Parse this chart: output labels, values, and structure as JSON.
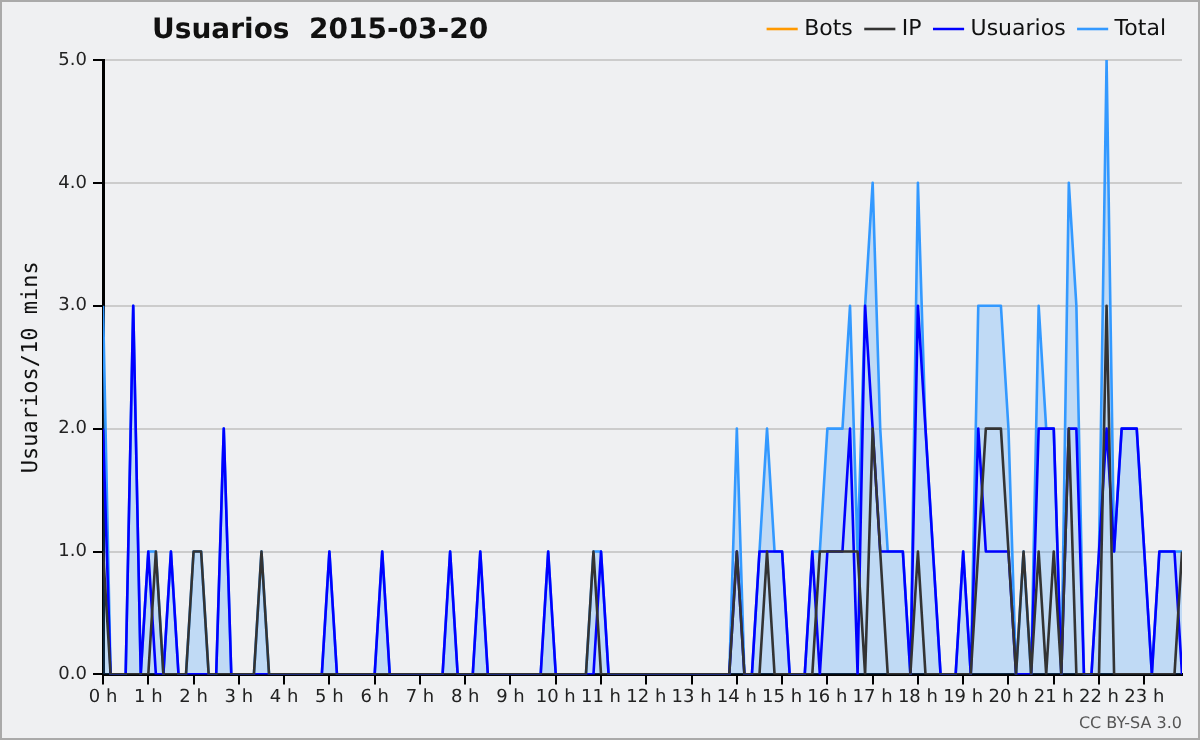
{
  "chart_data": {
    "type": "line",
    "title": "Usuarios  2015-03-20",
    "ylabel": "Usuarios/10 mins",
    "annotations": [
      "CC BY-SA 3.0"
    ],
    "x": [
      0,
      0.167,
      0.333,
      0.5,
      0.667,
      0.833,
      1,
      1.167,
      1.333,
      1.5,
      1.667,
      1.833,
      2,
      2.167,
      2.333,
      2.5,
      2.667,
      2.833,
      3,
      3.167,
      3.333,
      3.5,
      3.667,
      3.833,
      4,
      4.167,
      4.333,
      4.5,
      4.667,
      4.833,
      5,
      5.167,
      5.333,
      5.5,
      5.667,
      5.833,
      6,
      6.167,
      6.333,
      6.5,
      6.667,
      6.833,
      7,
      7.167,
      7.333,
      7.5,
      7.667,
      7.833,
      8,
      8.167,
      8.333,
      8.5,
      8.667,
      8.833,
      9,
      9.167,
      9.333,
      9.5,
      9.667,
      9.833,
      10,
      10.167,
      10.333,
      10.5,
      10.667,
      10.833,
      11,
      11.167,
      11.333,
      11.5,
      11.667,
      11.833,
      12,
      12.167,
      12.333,
      12.5,
      12.667,
      12.833,
      13,
      13.167,
      13.333,
      13.5,
      13.667,
      13.833,
      14,
      14.167,
      14.333,
      14.5,
      14.667,
      14.833,
      15,
      15.167,
      15.333,
      15.5,
      15.667,
      15.833,
      16,
      16.167,
      16.333,
      16.5,
      16.667,
      16.833,
      17,
      17.167,
      17.333,
      17.5,
      17.667,
      17.833,
      18,
      18.167,
      18.333,
      18.5,
      18.667,
      18.833,
      19,
      19.167,
      19.333,
      19.5,
      19.667,
      19.833,
      20,
      20.167,
      20.333,
      20.5,
      20.667,
      20.833,
      21,
      21.167,
      21.333,
      21.5,
      21.667,
      21.833,
      22,
      22.167,
      22.333,
      22.5,
      22.667,
      22.833,
      23,
      23.167,
      23.333,
      23.5,
      23.667,
      23.833
    ],
    "series": [
      {
        "name": "Total",
        "type": "area",
        "color": "#3399ff",
        "values": [
          3,
          0,
          0,
          0,
          3,
          0,
          1,
          1,
          0,
          1,
          0,
          0,
          1,
          1,
          0,
          0,
          2,
          0,
          0,
          0,
          0,
          1,
          0,
          0,
          0,
          0,
          0,
          0,
          0,
          0,
          1,
          0,
          0,
          0,
          0,
          0,
          0,
          1,
          0,
          0,
          0,
          0,
          0,
          0,
          0,
          0,
          1,
          0,
          0,
          0,
          1,
          0,
          0,
          0,
          0,
          0,
          0,
          0,
          0,
          1,
          0,
          0,
          0,
          0,
          0,
          1,
          1,
          0,
          0,
          0,
          0,
          0,
          0,
          0,
          0,
          0,
          0,
          0,
          0,
          0,
          0,
          0,
          0,
          0,
          2,
          0,
          0,
          1,
          2,
          1,
          1,
          0,
          0,
          0,
          1,
          1,
          2,
          2,
          2,
          3,
          1,
          3,
          4,
          2,
          1,
          1,
          1,
          0,
          4,
          2,
          1,
          0,
          0,
          0,
          1,
          0,
          3,
          3,
          3,
          3,
          2,
          0,
          1,
          0,
          3,
          2,
          2,
          0,
          4,
          3,
          0,
          0,
          1,
          5,
          1,
          2,
          2,
          2,
          1,
          0,
          1,
          1,
          1,
          1
        ]
      },
      {
        "name": "Usuarios",
        "color": "#0000ff",
        "values": [
          2,
          0,
          0,
          0,
          3,
          0,
          1,
          0,
          0,
          1,
          0,
          0,
          0,
          0,
          0,
          0,
          2,
          0,
          0,
          0,
          0,
          0,
          0,
          0,
          0,
          0,
          0,
          0,
          0,
          0,
          1,
          0,
          0,
          0,
          0,
          0,
          0,
          1,
          0,
          0,
          0,
          0,
          0,
          0,
          0,
          0,
          1,
          0,
          0,
          0,
          1,
          0,
          0,
          0,
          0,
          0,
          0,
          0,
          0,
          1,
          0,
          0,
          0,
          0,
          0,
          0,
          1,
          0,
          0,
          0,
          0,
          0,
          0,
          0,
          0,
          0,
          0,
          0,
          0,
          0,
          0,
          0,
          0,
          0,
          1,
          0,
          0,
          1,
          1,
          1,
          1,
          0,
          0,
          0,
          1,
          0,
          1,
          1,
          1,
          2,
          0,
          3,
          2,
          1,
          1,
          1,
          1,
          0,
          3,
          2,
          1,
          0,
          0,
          0,
          1,
          0,
          2,
          1,
          1,
          1,
          1,
          0,
          0,
          0,
          2,
          2,
          2,
          0,
          2,
          2,
          0,
          0,
          1,
          2,
          1,
          2,
          2,
          2,
          1,
          0,
          1,
          1,
          1,
          0
        ]
      },
      {
        "name": "IP",
        "color": "#333333",
        "values": [
          1,
          0,
          0,
          0,
          0,
          0,
          0,
          1,
          0,
          0,
          0,
          0,
          1,
          1,
          0,
          0,
          0,
          0,
          0,
          0,
          0,
          1,
          0,
          0,
          0,
          0,
          0,
          0,
          0,
          0,
          0,
          0,
          0,
          0,
          0,
          0,
          0,
          0,
          0,
          0,
          0,
          0,
          0,
          0,
          0,
          0,
          0,
          0,
          0,
          0,
          0,
          0,
          0,
          0,
          0,
          0,
          0,
          0,
          0,
          0,
          0,
          0,
          0,
          0,
          0,
          1,
          0,
          0,
          0,
          0,
          0,
          0,
          0,
          0,
          0,
          0,
          0,
          0,
          0,
          0,
          0,
          0,
          0,
          0,
          1,
          0,
          0,
          0,
          1,
          0,
          0,
          0,
          0,
          0,
          0,
          1,
          1,
          1,
          1,
          1,
          1,
          0,
          2,
          1,
          0,
          0,
          0,
          0,
          1,
          0,
          0,
          0,
          0,
          0,
          0,
          0,
          1,
          2,
          2,
          2,
          1,
          0,
          1,
          0,
          1,
          0,
          1,
          0,
          2,
          0,
          0,
          0,
          0,
          3,
          0,
          0,
          0,
          0,
          0,
          0,
          0,
          0,
          0,
          1
        ]
      },
      {
        "name": "Bots",
        "color": "#ff9900",
        "values": [
          null,
          null,
          null,
          null,
          null,
          null,
          null,
          null,
          null,
          null,
          null,
          null,
          null,
          null,
          null,
          null,
          null,
          null,
          null,
          null,
          null,
          null,
          null,
          null,
          null,
          null,
          null,
          null,
          null,
          null,
          null,
          null,
          null,
          null,
          null,
          null,
          null,
          null,
          null,
          null,
          null,
          null,
          null,
          null,
          null,
          null,
          null,
          null,
          null,
          null,
          null,
          null,
          null,
          null,
          null,
          null,
          null,
          null,
          null,
          null,
          null,
          null,
          null,
          null,
          null,
          null,
          null,
          null,
          null,
          null,
          null,
          null,
          null,
          null,
          null,
          null,
          null,
          null,
          null,
          null,
          null,
          null,
          null,
          null,
          null,
          null,
          null,
          null,
          null,
          null,
          null,
          null,
          null,
          null,
          null,
          null,
          null,
          null,
          null,
          null,
          null,
          null,
          null,
          null,
          null,
          null,
          null,
          null,
          null,
          null,
          null,
          null,
          null,
          null,
          null,
          null,
          null,
          null,
          null,
          null,
          null,
          null,
          null,
          null,
          null,
          null,
          null,
          null,
          null,
          null,
          null,
          null,
          null,
          null,
          null,
          null,
          null,
          null,
          null,
          null,
          null,
          null,
          null,
          null
        ]
      }
    ],
    "xlim": [
      0,
      23.833
    ],
    "xticks": [
      {
        "value": 0,
        "label": "0 h"
      },
      {
        "value": 1,
        "label": "1 h"
      },
      {
        "value": 2,
        "label": "2 h"
      },
      {
        "value": 3,
        "label": "3 h"
      },
      {
        "value": 4,
        "label": "4 h"
      },
      {
        "value": 5,
        "label": "5 h"
      },
      {
        "value": 6,
        "label": "6 h"
      },
      {
        "value": 7,
        "label": "7 h"
      },
      {
        "value": 8,
        "label": "8 h"
      },
      {
        "value": 9,
        "label": "9 h"
      },
      {
        "value": 10,
        "label": "10 h"
      },
      {
        "value": 11,
        "label": "11 h"
      },
      {
        "value": 12,
        "label": "12 h"
      },
      {
        "value": 13,
        "label": "13 h"
      },
      {
        "value": 14,
        "label": "14 h"
      },
      {
        "value": 15,
        "label": "15 h"
      },
      {
        "value": 16,
        "label": "16 h"
      },
      {
        "value": 17,
        "label": "17 h"
      },
      {
        "value": 18,
        "label": "18 h"
      },
      {
        "value": 19,
        "label": "19 h"
      },
      {
        "value": 20,
        "label": "20 h"
      },
      {
        "value": 21,
        "label": "21 h"
      },
      {
        "value": 22,
        "label": "22 h"
      },
      {
        "value": 23,
        "label": "23 h"
      }
    ],
    "ylim": [
      0,
      5
    ],
    "yticks": [
      {
        "value": 0,
        "label": "0.0"
      },
      {
        "value": 1,
        "label": "1.0"
      },
      {
        "value": 2,
        "label": "2.0"
      },
      {
        "value": 3,
        "label": "3.0"
      },
      {
        "value": 4,
        "label": "4.0"
      },
      {
        "value": 5,
        "label": "5.0"
      }
    ],
    "grid": "y",
    "legend": "top right",
    "marker": "none",
    "line_style": "solid"
  }
}
